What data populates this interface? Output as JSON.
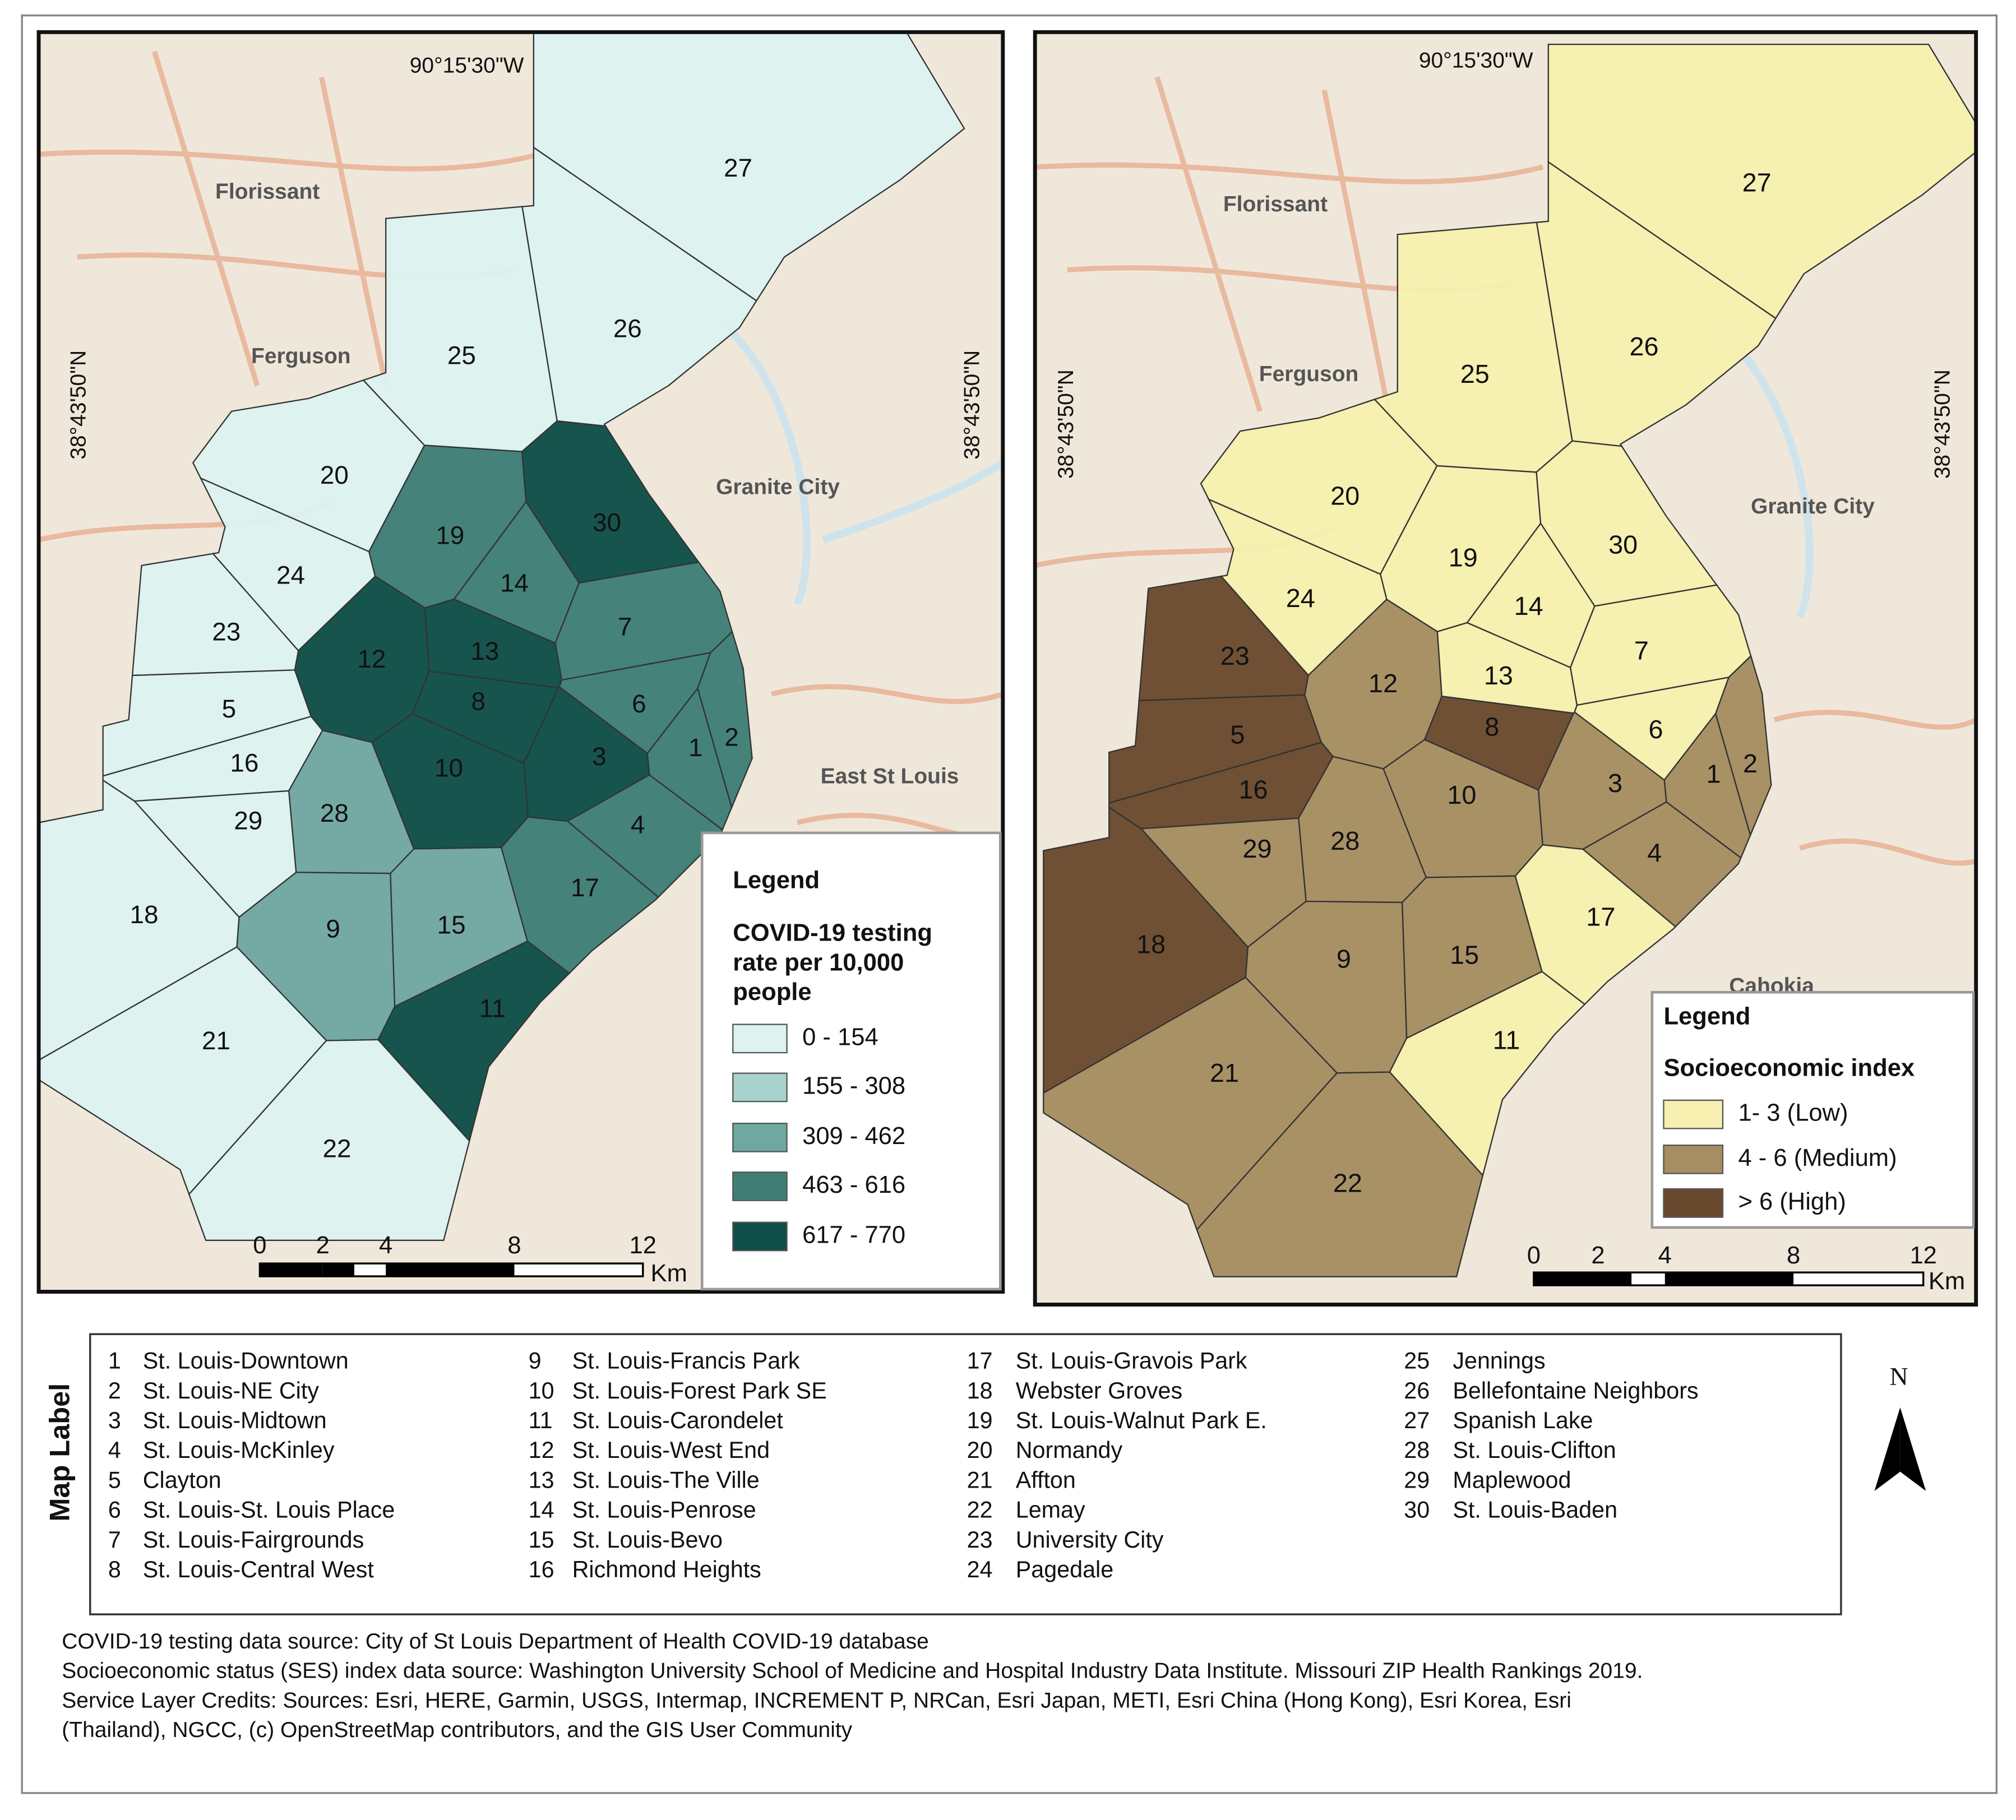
{
  "maps": [
    {
      "coordinates": [
        "90°15'30\"W",
        "38°43'50\"N",
        "38°43'50\"N"
      ],
      "places": [
        "Florissant",
        "Ferguson",
        "Granite City",
        "East St Louis"
      ],
      "legend": {
        "title": "Legend",
        "subtitle_lines": [
          "COVID-19 testing",
          "rate per 10,000",
          "people"
        ],
        "classes": [
          {
            "label": "0 - 154",
            "color": "#ddf2f1"
          },
          {
            "label": "155 - 308",
            "color": "#a7d2cd"
          },
          {
            "label": "309 - 462",
            "color": "#6fa7a1"
          },
          {
            "label": "463 - 616",
            "color": "#3f7e77"
          },
          {
            "label": "617 - 770",
            "color": "#0f4e48"
          }
        ]
      },
      "scale": {
        "ticks": [
          "0",
          "2",
          "4",
          "8",
          "12"
        ],
        "unit": "Km"
      },
      "regions": [
        {
          "label": "1",
          "class": "463 - 616"
        },
        {
          "label": "2",
          "class": "463 - 616"
        },
        {
          "label": "3",
          "class": "617 - 770"
        },
        {
          "label": "4",
          "class": "463 - 616"
        },
        {
          "label": "5",
          "class": "0 - 154"
        },
        {
          "label": "6",
          "class": "463 - 616"
        },
        {
          "label": "7",
          "class": "463 - 616"
        },
        {
          "label": "8",
          "class": "617 - 770"
        },
        {
          "label": "9",
          "class": "309 - 462"
        },
        {
          "label": "10",
          "class": "617 - 770"
        },
        {
          "label": "11",
          "class": "617 - 770"
        },
        {
          "label": "12",
          "class": "617 - 770"
        },
        {
          "label": "13",
          "class": "617 - 770"
        },
        {
          "label": "14",
          "class": "463 - 616"
        },
        {
          "label": "15",
          "class": "309 - 462"
        },
        {
          "label": "16",
          "class": "0 - 154"
        },
        {
          "label": "17",
          "class": "463 - 616"
        },
        {
          "label": "18",
          "class": "0 - 154"
        },
        {
          "label": "19",
          "class": "463 - 616"
        },
        {
          "label": "20",
          "class": "0 - 154"
        },
        {
          "label": "21",
          "class": "0 - 154"
        },
        {
          "label": "22",
          "class": "0 - 154"
        },
        {
          "label": "23",
          "class": "0 - 154"
        },
        {
          "label": "24",
          "class": "0 - 154"
        },
        {
          "label": "25",
          "class": "0 - 154"
        },
        {
          "label": "26",
          "class": "0 - 154"
        },
        {
          "label": "27",
          "class": "0 - 154"
        },
        {
          "label": "28",
          "class": "309 - 462"
        },
        {
          "label": "29",
          "class": "0 - 154"
        },
        {
          "label": "30",
          "class": "617 - 770"
        }
      ]
    },
    {
      "coordinates": [
        "90°15'30\"W",
        "38°43'50\"N",
        "38°43'50\"N"
      ],
      "places": [
        "Florissant",
        "Ferguson",
        "Granite City",
        "Cahokia"
      ],
      "legend": {
        "title": "Legend",
        "subtitle_lines": [
          "Socioeconomic index"
        ],
        "classes": [
          {
            "label": "1- 3 (Low)",
            "color": "#f6efb0"
          },
          {
            "label": "4 - 6 (Medium)",
            "color": "#a68d62"
          },
          {
            "label": "> 6 (High)",
            "color": "#6a4a2e"
          }
        ]
      },
      "scale": {
        "ticks": [
          "0",
          "2",
          "4",
          "8",
          "12"
        ],
        "unit": "Km"
      },
      "regions": [
        {
          "label": "1",
          "class": "4 - 6 (Medium)"
        },
        {
          "label": "2",
          "class": "4 - 6 (Medium)"
        },
        {
          "label": "3",
          "class": "4 - 6 (Medium)"
        },
        {
          "label": "4",
          "class": "4 - 6 (Medium)"
        },
        {
          "label": "5",
          "class": "> 6 (High)"
        },
        {
          "label": "6",
          "class": "1- 3 (Low)"
        },
        {
          "label": "7",
          "class": "1- 3 (Low)"
        },
        {
          "label": "8",
          "class": "> 6 (High)"
        },
        {
          "label": "9",
          "class": "4 - 6 (Medium)"
        },
        {
          "label": "10",
          "class": "4 - 6 (Medium)"
        },
        {
          "label": "11",
          "class": "1- 3 (Low)"
        },
        {
          "label": "12",
          "class": "4 - 6 (Medium)"
        },
        {
          "label": "13",
          "class": "1- 3 (Low)"
        },
        {
          "label": "14",
          "class": "1- 3 (Low)"
        },
        {
          "label": "15",
          "class": "4 - 6 (Medium)"
        },
        {
          "label": "16",
          "class": "> 6 (High)"
        },
        {
          "label": "17",
          "class": "1- 3 (Low)"
        },
        {
          "label": "18",
          "class": "> 6 (High)"
        },
        {
          "label": "19",
          "class": "1- 3 (Low)"
        },
        {
          "label": "20",
          "class": "1- 3 (Low)"
        },
        {
          "label": "21",
          "class": "4 - 6 (Medium)"
        },
        {
          "label": "22",
          "class": "4 - 6 (Medium)"
        },
        {
          "label": "23",
          "class": "> 6 (High)"
        },
        {
          "label": "24",
          "class": "1- 3 (Low)"
        },
        {
          "label": "25",
          "class": "1- 3 (Low)"
        },
        {
          "label": "26",
          "class": "1- 3 (Low)"
        },
        {
          "label": "27",
          "class": "1- 3 (Low)"
        },
        {
          "label": "28",
          "class": "4 - 6 (Medium)"
        },
        {
          "label": "29",
          "class": "4 - 6 (Medium)"
        },
        {
          "label": "30",
          "class": "1- 3 (Low)"
        }
      ]
    }
  ],
  "map_label": {
    "title": "Map Label",
    "entries": [
      {
        "number": "1",
        "name": "St. Louis-Downtown"
      },
      {
        "number": "2",
        "name": "St. Louis-NE City"
      },
      {
        "number": "3",
        "name": "St. Louis-Midtown"
      },
      {
        "number": "4",
        "name": "St. Louis-McKinley"
      },
      {
        "number": "5",
        "name": "Clayton"
      },
      {
        "number": "6",
        "name": "St. Louis-St. Louis Place"
      },
      {
        "number": "7",
        "name": "St. Louis-Fairgrounds"
      },
      {
        "number": "8",
        "name": "St. Louis-Central West"
      },
      {
        "number": "9",
        "name": "St. Louis-Francis Park"
      },
      {
        "number": "10",
        "name": "St. Louis-Forest Park SE"
      },
      {
        "number": "11",
        "name": "St. Louis-Carondelet"
      },
      {
        "number": "12",
        "name": "St. Louis-West End"
      },
      {
        "number": "13",
        "name": "St. Louis-The Ville"
      },
      {
        "number": "14",
        "name": "St. Louis-Penrose"
      },
      {
        "number": "15",
        "name": "St. Louis-Bevo"
      },
      {
        "number": "16",
        "name": "Richmond Heights"
      },
      {
        "number": "17",
        "name": "St. Louis-Gravois Park"
      },
      {
        "number": "18",
        "name": "Webster Groves"
      },
      {
        "number": "19",
        "name": "St. Louis-Walnut Park E."
      },
      {
        "number": "20",
        "name": "Normandy"
      },
      {
        "number": "21",
        "name": "Affton"
      },
      {
        "number": "22",
        "name": "Lemay"
      },
      {
        "number": "23",
        "name": "University City"
      },
      {
        "number": "24",
        "name": "Pagedale"
      },
      {
        "number": "25",
        "name": "Jennings"
      },
      {
        "number": "26",
        "name": "Bellefontaine Neighbors"
      },
      {
        "number": "27",
        "name": "Spanish Lake"
      },
      {
        "number": "28",
        "name": "St. Louis-Clifton"
      },
      {
        "number": "29",
        "name": "Maplewood"
      },
      {
        "number": "30",
        "name": "St. Louis-Baden"
      }
    ]
  },
  "north": "N",
  "credits": [
    "COVID-19 testing data source:  City of St Louis Department of Health COVID-19 database",
    "Socioeconomic status (SES) index data source: Washington University School of Medicine and Hospital Industry Data Institute. Missouri ZIP Health Rankings 2019.",
    "Service Layer Credits: Sources: Esri, HERE, Garmin, USGS, Intermap, INCREMENT P, NRCan, Esri Japan, METI, Esri China (Hong Kong), Esri Korea, Esri",
    "(Thailand), NGCC, (c) OpenStreetMap contributors, and the GIS User Community"
  ]
}
